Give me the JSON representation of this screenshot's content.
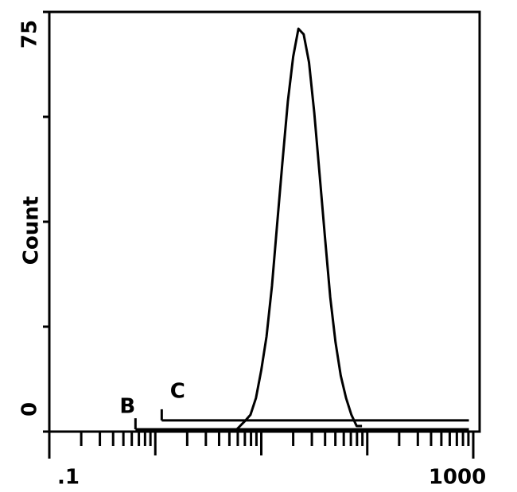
{
  "chart_data": {
    "type": "line",
    "xscale": "log",
    "ylabel": "Count",
    "x": [
      5.6,
      6.3,
      7.1,
      7.9,
      8.9,
      10,
      11.2,
      12.6,
      14.1,
      15.8,
      17.8,
      20,
      22.4,
      25.1,
      28.2,
      31.6,
      35.5,
      39.8,
      44.7,
      50.1,
      56.2,
      63.1,
      70.8,
      79.4,
      89.1
    ],
    "series": [
      {
        "color": "#000000",
        "values": [
          0,
          1,
          2,
          3,
          6,
          11,
          17,
          26,
          37,
          48,
          59,
          67,
          72,
          71,
          66,
          57,
          46,
          35,
          24,
          16,
          10,
          6,
          3,
          1,
          1
        ]
      }
    ],
    "xlim": [
      0.1,
      1000
    ],
    "ylim": [
      0,
      75
    ],
    "xticks": [
      {
        "value": 0.1,
        "label": ".1"
      },
      {
        "value": 1000,
        "label": "1000"
      }
    ],
    "xminor_ticks": [
      0.2,
      0.3,
      0.4,
      0.5,
      0.6,
      0.7,
      0.8,
      0.9,
      1,
      2,
      3,
      4,
      5,
      6,
      7,
      8,
      9,
      10,
      20,
      30,
      40,
      50,
      60,
      70,
      80,
      90,
      100,
      200,
      300,
      400,
      500,
      600,
      700,
      800,
      900
    ],
    "yticks": [
      0,
      75
    ],
    "yminor_ticks": [
      18.75,
      37.5,
      56.25
    ],
    "markers": [
      {
        "label": "B",
        "x": [
          0.65,
          910
        ],
        "y": 0.4
      },
      {
        "label": "C",
        "x": [
          1.15,
          910
        ],
        "y": 2
      }
    ]
  }
}
